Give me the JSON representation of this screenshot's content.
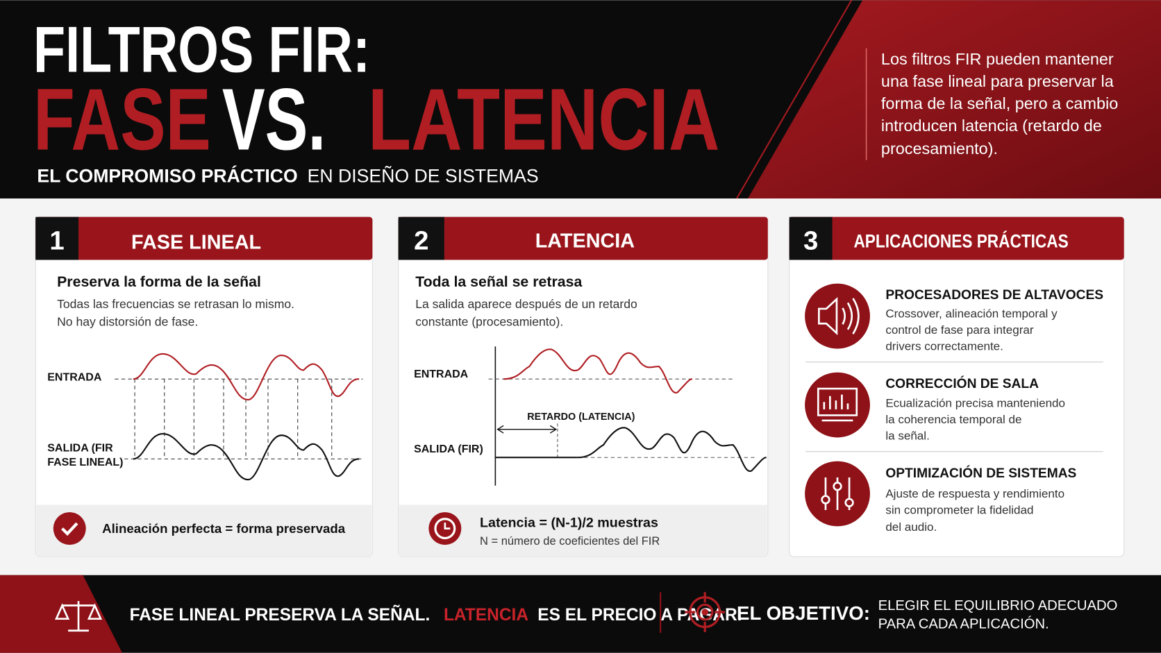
{
  "header": {
    "title_line1": "FILTROS FIR:",
    "title_word1": "FASE",
    "title_word2": "VS.",
    "title_word3": "LATENCIA",
    "subtitle_bold": "EL COMPROMISO PRÁCTICO",
    "subtitle_rest": "EN DISEÑO DE SISTEMAS",
    "intro": [
      "Los filtros FIR pueden mantener",
      "una fase lineal para preservar la",
      "forma de la señal, pero a cambio",
      "introducen latencia (retardo de",
      "procesamiento)."
    ]
  },
  "cards": [
    {
      "number": "1",
      "title": "FASE LINEAL",
      "heading": "Preserva la forma de la señal",
      "description": [
        "Todas las frecuencias se retrasan lo mismo.",
        "No hay distorsión de fase."
      ],
      "input_label": "ENTRADA",
      "output_label": [
        "SALIDA (FIR",
        "FASE LINEAL)"
      ],
      "footer": "Alineación perfecta = forma preservada"
    },
    {
      "number": "2",
      "title": "LATENCIA",
      "heading": "Toda la señal se retrasa",
      "description": [
        "La salida aparece después de un retardo",
        "constante (procesamiento)."
      ],
      "input_label": "ENTRADA",
      "output_label": "SALIDA (FIR)",
      "delay_label": "RETARDO (LATENCIA)",
      "formula": "Latencia = (N-1)/2 muestras",
      "formula_note": "N = número de coeficientes del FIR"
    },
    {
      "number": "3",
      "title": "APLICACIONES PRÁCTICAS",
      "items": [
        {
          "title": "PROCESADORES DE ALTAVOCES",
          "description": [
            "Crossover, alineación temporal y",
            "control de fase para integrar",
            "drivers correctamente."
          ]
        },
        {
          "title": "CORRECCIÓN DE SALA",
          "description": [
            "Ecualización precisa manteniendo",
            "la coherencia temporal de",
            "la señal."
          ]
        },
        {
          "title": "OPTIMIZACIÓN DE SISTEMAS",
          "description": [
            "Ajuste de respuesta y rendimiento",
            "sin comprometer la fidelidad",
            "del audio."
          ]
        }
      ]
    }
  ],
  "footer": {
    "statement_part1": "FASE LINEAL PRESERVA LA SEÑAL.",
    "statement_highlight": "LATENCIA",
    "statement_part2": "ES EL PRECIO A PAGAR.",
    "goal_label": "EL OBJETIVO:",
    "goal_text": [
      "ELEGIR EL EQUILIBRIO ADECUADO",
      "PARA CADA APLICACIÓN."
    ]
  }
}
